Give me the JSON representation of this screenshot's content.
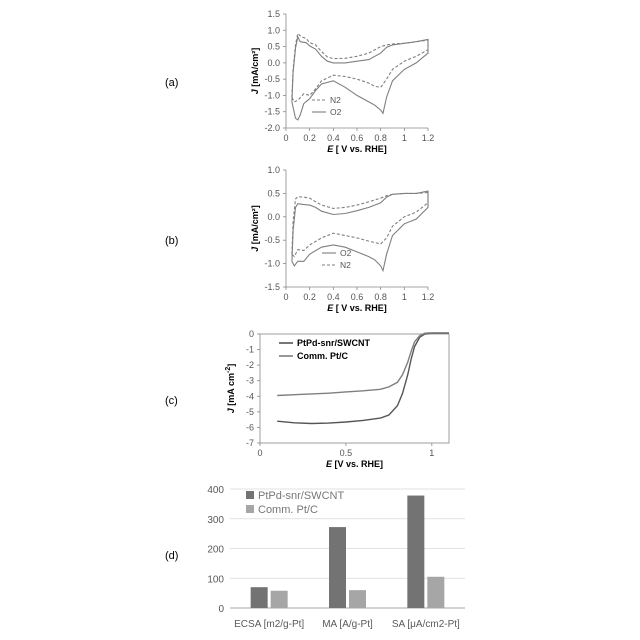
{
  "panels": {
    "a": "(a)",
    "b": "(b)",
    "c": "(c)",
    "d": "(d)"
  },
  "colors": {
    "curve": "#7f7f7f",
    "curve_dark": "#555555",
    "bar_primary": "#737373",
    "bar_secondary": "#a6a6a6",
    "axis": "#888888",
    "grid": "#d9d9d9"
  },
  "chart_data": [
    {
      "id": "a",
      "type": "line",
      "xlabel_italic": "E",
      "xlabel_rest": " [ V vs. RHE]",
      "ylabel_italic": "J",
      "ylabel_rest": " [mA/cm²]",
      "xlim": [
        0,
        1.2
      ],
      "ylim": [
        -2.0,
        1.5
      ],
      "xticks": [
        0,
        0.2,
        0.4,
        0.6,
        0.8,
        1,
        1.2
      ],
      "xtick_labels": [
        "0",
        "0.2",
        "0.4",
        "0.6",
        "0.8",
        "1",
        "1.2"
      ],
      "yticks": [
        1.5,
        1.0,
        0.5,
        0.0,
        -0.5,
        -1.0,
        -1.5,
        -2.0
      ],
      "ytick_labels": [
        "1.5",
        "1.0",
        "0.5",
        "0.0",
        "-0.5",
        "-1.0",
        "-1.5",
        "-2.0"
      ],
      "legend_position": "bottom-left",
      "series": [
        {
          "name": "N2",
          "style": "dashed",
          "points": [
            [
              0.05,
              -1.05
            ],
            [
              0.06,
              -0.2
            ],
            [
              0.08,
              0.55
            ],
            [
              0.1,
              0.9
            ],
            [
              0.13,
              0.8
            ],
            [
              0.17,
              0.75
            ],
            [
              0.2,
              0.62
            ],
            [
              0.25,
              0.55
            ],
            [
              0.3,
              0.35
            ],
            [
              0.35,
              0.18
            ],
            [
              0.4,
              0.13
            ],
            [
              0.5,
              0.14
            ],
            [
              0.6,
              0.2
            ],
            [
              0.7,
              0.3
            ],
            [
              0.8,
              0.5
            ],
            [
              0.85,
              0.55
            ],
            [
              0.9,
              0.58
            ],
            [
              1.0,
              0.6
            ],
            [
              1.1,
              0.65
            ],
            [
              1.2,
              0.7
            ],
            [
              1.2,
              0.4
            ],
            [
              1.1,
              0.2
            ],
            [
              1.0,
              0.05
            ],
            [
              0.9,
              -0.2
            ],
            [
              0.85,
              -0.5
            ],
            [
              0.8,
              -0.75
            ],
            [
              0.75,
              -0.72
            ],
            [
              0.7,
              -0.62
            ],
            [
              0.6,
              -0.5
            ],
            [
              0.5,
              -0.42
            ],
            [
              0.4,
              -0.38
            ],
            [
              0.3,
              -0.55
            ],
            [
              0.25,
              -0.8
            ],
            [
              0.2,
              -1.0
            ],
            [
              0.15,
              -0.95
            ],
            [
              0.1,
              -1.15
            ],
            [
              0.07,
              -1.2
            ],
            [
              0.05,
              -1.05
            ]
          ]
        },
        {
          "name": "O2",
          "style": "solid",
          "points": [
            [
              0.05,
              -1.2
            ],
            [
              0.06,
              -0.3
            ],
            [
              0.08,
              0.45
            ],
            [
              0.1,
              0.8
            ],
            [
              0.12,
              0.65
            ],
            [
              0.17,
              0.62
            ],
            [
              0.2,
              0.52
            ],
            [
              0.25,
              0.42
            ],
            [
              0.3,
              0.2
            ],
            [
              0.35,
              0.05
            ],
            [
              0.4,
              0.0
            ],
            [
              0.5,
              0.0
            ],
            [
              0.6,
              0.05
            ],
            [
              0.7,
              0.1
            ],
            [
              0.8,
              0.3
            ],
            [
              0.85,
              0.48
            ],
            [
              0.9,
              0.55
            ],
            [
              1.0,
              0.6
            ],
            [
              1.1,
              0.65
            ],
            [
              1.2,
              0.72
            ],
            [
              1.2,
              0.3
            ],
            [
              1.1,
              0.0
            ],
            [
              1.0,
              -0.2
            ],
            [
              0.9,
              -0.55
            ],
            [
              0.85,
              -1.05
            ],
            [
              0.82,
              -1.55
            ],
            [
              0.8,
              -1.45
            ],
            [
              0.75,
              -1.3
            ],
            [
              0.7,
              -1.2
            ],
            [
              0.6,
              -1.0
            ],
            [
              0.5,
              -0.75
            ],
            [
              0.4,
              -0.55
            ],
            [
              0.3,
              -0.65
            ],
            [
              0.25,
              -0.85
            ],
            [
              0.2,
              -1.1
            ],
            [
              0.15,
              -1.25
            ],
            [
              0.12,
              -1.6
            ],
            [
              0.1,
              -1.75
            ],
            [
              0.08,
              -1.7
            ],
            [
              0.05,
              -1.2
            ]
          ]
        }
      ]
    },
    {
      "id": "b",
      "type": "line",
      "xlabel_italic": "E",
      "xlabel_rest": " [ V vs. RHE]",
      "ylabel_italic": "J",
      "ylabel_rest": " [mA/cm²]",
      "xlim": [
        0,
        1.2
      ],
      "ylim": [
        -1.5,
        1.0
      ],
      "xticks": [
        0,
        0.2,
        0.4,
        0.6,
        0.8,
        1,
        1.2
      ],
      "xtick_labels": [
        "0",
        "0.2",
        "0.4",
        "0.6",
        "0.8",
        "1",
        "1.2"
      ],
      "yticks": [
        1.0,
        0.5,
        0.0,
        -0.5,
        -1.0,
        -1.5
      ],
      "ytick_labels": [
        "1.0",
        "0.5",
        "0.0",
        "-0.5",
        "-1.0",
        "-1.5"
      ],
      "legend_position": "bottom-center",
      "series": [
        {
          "name": "O2",
          "style": "solid",
          "points": [
            [
              0.05,
              -0.95
            ],
            [
              0.06,
              -0.3
            ],
            [
              0.08,
              0.2
            ],
            [
              0.1,
              0.28
            ],
            [
              0.15,
              0.26
            ],
            [
              0.2,
              0.25
            ],
            [
              0.25,
              0.2
            ],
            [
              0.3,
              0.12
            ],
            [
              0.4,
              0.05
            ],
            [
              0.5,
              0.07
            ],
            [
              0.6,
              0.13
            ],
            [
              0.7,
              0.2
            ],
            [
              0.8,
              0.3
            ],
            [
              0.85,
              0.42
            ],
            [
              0.9,
              0.48
            ],
            [
              1.0,
              0.5
            ],
            [
              1.1,
              0.5
            ],
            [
              1.2,
              0.55
            ],
            [
              1.2,
              0.2
            ],
            [
              1.1,
              -0.05
            ],
            [
              1.0,
              -0.15
            ],
            [
              0.9,
              -0.4
            ],
            [
              0.85,
              -0.8
            ],
            [
              0.82,
              -1.15
            ],
            [
              0.8,
              -1.05
            ],
            [
              0.75,
              -0.92
            ],
            [
              0.7,
              -0.85
            ],
            [
              0.6,
              -0.75
            ],
            [
              0.5,
              -0.65
            ],
            [
              0.4,
              -0.6
            ],
            [
              0.3,
              -0.65
            ],
            [
              0.2,
              -0.8
            ],
            [
              0.15,
              -0.95
            ],
            [
              0.1,
              -0.95
            ],
            [
              0.07,
              -1.05
            ],
            [
              0.05,
              -0.95
            ]
          ]
        },
        {
          "name": "N2",
          "style": "dashed",
          "points": [
            [
              0.05,
              -0.8
            ],
            [
              0.06,
              -0.1
            ],
            [
              0.08,
              0.38
            ],
            [
              0.1,
              0.43
            ],
            [
              0.15,
              0.42
            ],
            [
              0.2,
              0.4
            ],
            [
              0.25,
              0.32
            ],
            [
              0.3,
              0.25
            ],
            [
              0.4,
              0.18
            ],
            [
              0.5,
              0.2
            ],
            [
              0.6,
              0.25
            ],
            [
              0.7,
              0.32
            ],
            [
              0.8,
              0.4
            ],
            [
              0.85,
              0.45
            ],
            [
              0.9,
              0.48
            ],
            [
              1.0,
              0.5
            ],
            [
              1.1,
              0.5
            ],
            [
              1.2,
              0.52
            ],
            [
              1.2,
              0.3
            ],
            [
              1.1,
              0.1
            ],
            [
              1.0,
              0.0
            ],
            [
              0.9,
              -0.2
            ],
            [
              0.85,
              -0.45
            ],
            [
              0.8,
              -0.58
            ],
            [
              0.7,
              -0.52
            ],
            [
              0.6,
              -0.45
            ],
            [
              0.5,
              -0.4
            ],
            [
              0.4,
              -0.35
            ],
            [
              0.3,
              -0.45
            ],
            [
              0.2,
              -0.6
            ],
            [
              0.15,
              -0.72
            ],
            [
              0.1,
              -0.7
            ],
            [
              0.07,
              -0.85
            ],
            [
              0.05,
              -0.8
            ]
          ]
        }
      ]
    },
    {
      "id": "c",
      "type": "line",
      "xlabel_italic": "E",
      "xlabel_rest": " [V vs. RHE]",
      "ylabel_italic": "J",
      "ylabel_rest": " [mA cm",
      "ylabel_sup": "-2",
      "ylabel_close": "]",
      "xlim": [
        0,
        1.1
      ],
      "ylim": [
        -7,
        0
      ],
      "xticks": [
        0,
        0.5,
        1
      ],
      "xtick_labels": [
        "0",
        "0.5",
        "1"
      ],
      "yticks": [
        0,
        -1,
        -2,
        -3,
        -4,
        -5,
        -6,
        -7
      ],
      "ytick_labels": [
        "0",
        "-1",
        "-2",
        "-3",
        "-4",
        "-5",
        "-6",
        "-7"
      ],
      "legend_position": "top-left",
      "series": [
        {
          "name": "PtPd-snr/SWCNT",
          "style": "solid",
          "points": [
            [
              0.1,
              -5.6
            ],
            [
              0.2,
              -5.7
            ],
            [
              0.3,
              -5.75
            ],
            [
              0.4,
              -5.72
            ],
            [
              0.5,
              -5.65
            ],
            [
              0.6,
              -5.55
            ],
            [
              0.7,
              -5.4
            ],
            [
              0.75,
              -5.2
            ],
            [
              0.8,
              -4.6
            ],
            [
              0.83,
              -3.8
            ],
            [
              0.86,
              -2.6
            ],
            [
              0.88,
              -1.6
            ],
            [
              0.9,
              -0.8
            ],
            [
              0.93,
              -0.2
            ],
            [
              0.96,
              0.0
            ],
            [
              1.0,
              0.05
            ],
            [
              1.1,
              0.05
            ]
          ]
        },
        {
          "name": "Comm. Pt/C",
          "style": "solid",
          "points": [
            [
              0.1,
              -3.95
            ],
            [
              0.2,
              -3.9
            ],
            [
              0.3,
              -3.85
            ],
            [
              0.4,
              -3.8
            ],
            [
              0.5,
              -3.72
            ],
            [
              0.6,
              -3.65
            ],
            [
              0.7,
              -3.55
            ],
            [
              0.75,
              -3.4
            ],
            [
              0.8,
              -3.1
            ],
            [
              0.83,
              -2.6
            ],
            [
              0.86,
              -1.8
            ],
            [
              0.88,
              -1.1
            ],
            [
              0.9,
              -0.5
            ],
            [
              0.93,
              -0.1
            ],
            [
              0.96,
              0.05
            ],
            [
              1.0,
              0.08
            ],
            [
              1.1,
              0.08
            ]
          ]
        }
      ]
    },
    {
      "id": "d",
      "type": "bar",
      "categories": [
        "ECSA [m2/g-Pt]",
        "MA [A/g-Pt]",
        "SA [μA/cm2-Pt]"
      ],
      "ylim": [
        0,
        400
      ],
      "yticks": [
        0,
        100,
        200,
        300,
        400
      ],
      "ytick_labels": [
        "0",
        "100",
        "200",
        "300",
        "400"
      ],
      "legend_position": "top-left",
      "series": [
        {
          "name": "PtPd-snr/SWCNT",
          "values": [
            70,
            272,
            378
          ]
        },
        {
          "name": "Comm. Pt/C",
          "values": [
            58,
            60,
            105
          ]
        }
      ]
    }
  ]
}
